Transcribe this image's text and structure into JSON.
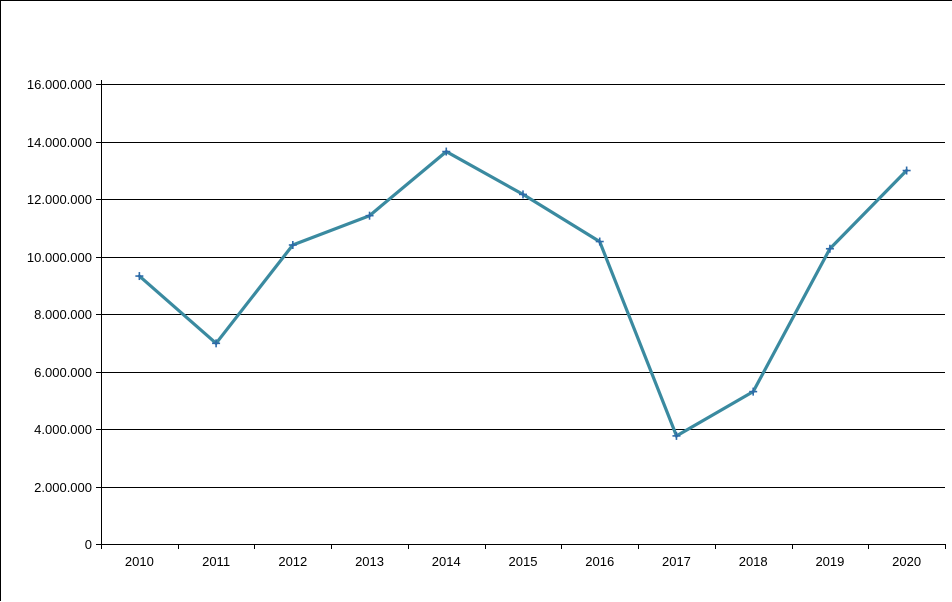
{
  "chart_data": {
    "type": "line",
    "title": "",
    "xlabel": "",
    "ylabel": "",
    "categories": [
      "2010",
      "2011",
      "2012",
      "2013",
      "2014",
      "2015",
      "2016",
      "2017",
      "2018",
      "2019",
      "2020"
    ],
    "series": [
      {
        "values": [
          9320000,
          6980000,
          10400000,
          11420000,
          13650000,
          12160000,
          10520000,
          3760000,
          5300000,
          10270000,
          12990000
        ],
        "color": "#3a8aa0",
        "marker": "plus",
        "marker_color": "#2d6aa8"
      }
    ],
    "ylim": [
      0,
      16000000
    ],
    "y_ticks": [
      0,
      2000000,
      4000000,
      6000000,
      8000000,
      10000000,
      12000000,
      14000000,
      16000000
    ],
    "y_tick_labels": [
      "0",
      "2.000.000",
      "4.000.000",
      "6.000.000",
      "8.000.000",
      "10.000.000",
      "12.000.000",
      "14.000.000",
      "16.000.000"
    ],
    "grid": true,
    "legend": "none"
  }
}
